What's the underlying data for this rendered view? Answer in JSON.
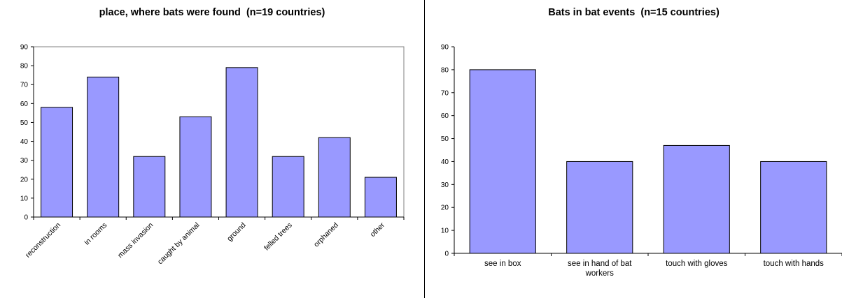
{
  "chart_data": [
    {
      "type": "bar",
      "title": "place, where bats were found  (n=19 countries)",
      "categories": [
        "reconstruction",
        "in rooms",
        "mass invasion",
        "caught by animal",
        "ground",
        "felled trees",
        "orphaned",
        "other"
      ],
      "values": [
        58,
        74,
        32,
        53,
        79,
        32,
        42,
        21
      ],
      "xlabel": "",
      "ylabel": "",
      "ylim": [
        0,
        90
      ],
      "yticks": [
        0,
        10,
        20,
        30,
        40,
        50,
        60,
        70,
        80,
        90
      ],
      "bar_color": "#9999ff",
      "grid": false,
      "legend": "none"
    },
    {
      "type": "bar",
      "title": "Bats in bat events  (n=15 countries)",
      "categories": [
        "see in box",
        "see in hand of bat workers",
        "touch with gloves",
        "touch with hands"
      ],
      "values": [
        80,
        40,
        47,
        40
      ],
      "xlabel": "",
      "ylabel": "",
      "ylim": [
        0,
        90
      ],
      "yticks": [
        0,
        10,
        20,
        30,
        40,
        50,
        60,
        70,
        80,
        90
      ],
      "bar_color": "#9999ff",
      "grid": false,
      "legend": "none"
    }
  ]
}
